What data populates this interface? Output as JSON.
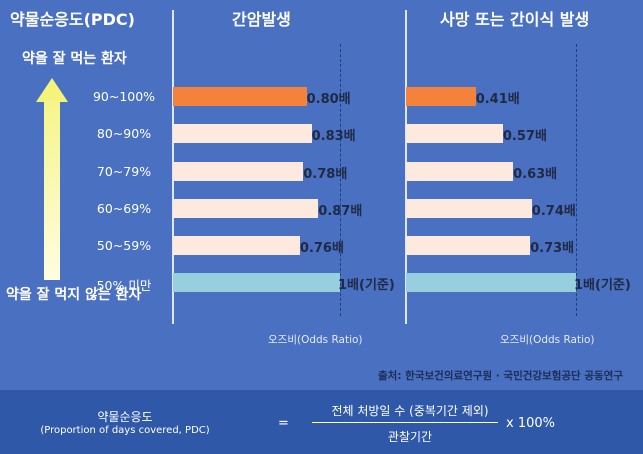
{
  "chart_data": [
    {
      "type": "bar",
      "orientation": "horizontal",
      "title": "간암발생",
      "categories": [
        "90~100%",
        "80~90%",
        "70~79%",
        "60~69%",
        "50~59%",
        "50% 미만"
      ],
      "values": [
        0.8,
        0.83,
        0.78,
        0.87,
        0.76,
        1.0
      ],
      "value_labels": [
        "0.80배",
        "0.83배",
        "0.78배",
        "0.87배",
        "0.76배",
        "1배(기준)"
      ],
      "colors": [
        "#f4823a",
        "#fde9dd",
        "#fde9dd",
        "#fde9dd",
        "#fde9dd",
        "#98cfdf"
      ],
      "xlabel": "오즈비(Odds Ratio)",
      "reference_value": 1.0,
      "xlim": [
        0,
        1.2
      ]
    },
    {
      "type": "bar",
      "orientation": "horizontal",
      "title": "사망 또는 간이식 발생",
      "categories": [
        "90~100%",
        "80~90%",
        "70~79%",
        "60~69%",
        "50~59%",
        "50% 미만"
      ],
      "values": [
        0.41,
        0.57,
        0.63,
        0.74,
        0.73,
        1.0
      ],
      "value_labels": [
        "0.41배",
        "0.57배",
        "0.63배",
        "0.74배",
        "0.73배",
        "1배(기준)"
      ],
      "colors": [
        "#f4823a",
        "#fde9dd",
        "#fde9dd",
        "#fde9dd",
        "#fde9dd",
        "#98cfdf"
      ],
      "xlabel": "오즈비(Odds Ratio)",
      "reference_value": 1.0,
      "xlim": [
        0,
        1.2
      ]
    }
  ],
  "header": {
    "pdc_label": "약물순응도(PDC)"
  },
  "arrow": {
    "top_label": "약을 잘 먹는 환자",
    "bottom_label": "약을 잘 먹지 않는 환자"
  },
  "source": "출처: 한국보건의료연구원 · 국민건강보험공단 공동연구",
  "formula": {
    "term": "약물순응도",
    "term_en": "(Proportion of days covered, PDC)",
    "equals": "=",
    "numerator": "전체 처방일 수 (중복기간 제외)",
    "denominator": "관찰기간",
    "multiplier": "x 100%"
  },
  "colors": {
    "background": "#4a70c2",
    "footer": "#2f59a8",
    "highlight": "#f4823a",
    "reference": "#98cfdf",
    "neutral": "#fde9dd"
  }
}
